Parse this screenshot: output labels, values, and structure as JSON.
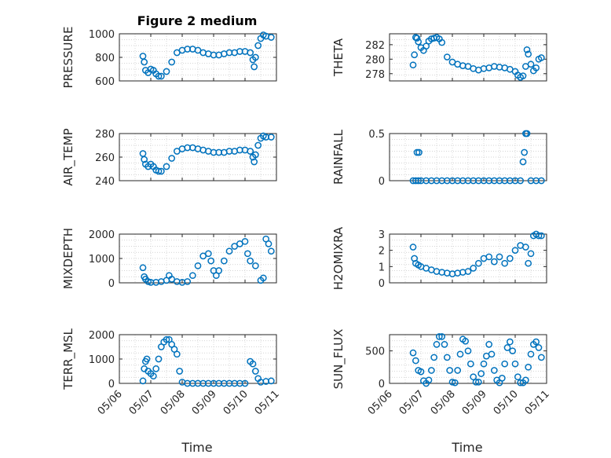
{
  "figure": {
    "title": "Figure 2 medium",
    "xlabel": "Time",
    "marker_color": "#0072BD"
  },
  "chart_data": [
    {
      "type": "scatter",
      "name": "pressure",
      "ylabel": "PRESSURE",
      "ylim": [
        600,
        1000
      ],
      "yticks": [
        600,
        800,
        1000
      ],
      "xlim": [
        "05/06",
        "05/11"
      ],
      "x": [
        "2023-05-06T18:00",
        "2023-05-06T19:00",
        "2023-05-06T20:00",
        "2023-05-06T22:00",
        "2023-05-07T00:00",
        "2023-05-07T02:00",
        "2023-05-07T04:00",
        "2023-05-07T06:00",
        "2023-05-07T08:00",
        "2023-05-07T12:00",
        "2023-05-07T16:00",
        "2023-05-07T20:00",
        "2023-05-08T00:00",
        "2023-05-08T04:00",
        "2023-05-08T08:00",
        "2023-05-08T12:00",
        "2023-05-08T16:00",
        "2023-05-08T20:00",
        "2023-05-09T00:00",
        "2023-05-09T04:00",
        "2023-05-09T08:00",
        "2023-05-09T12:00",
        "2023-05-09T16:00",
        "2023-05-09T20:00",
        "2023-05-10T00:00",
        "2023-05-10T04:00",
        "2023-05-10T06:00",
        "2023-05-10T07:00",
        "2023-05-10T08:00",
        "2023-05-10T10:00",
        "2023-05-10T12:00",
        "2023-05-10T14:00",
        "2023-05-10T16:00",
        "2023-05-10T20:00"
      ],
      "y": [
        810,
        760,
        690,
        670,
        700,
        690,
        660,
        640,
        640,
        680,
        760,
        840,
        860,
        870,
        870,
        860,
        840,
        830,
        820,
        820,
        830,
        840,
        840,
        850,
        850,
        840,
        780,
        720,
        800,
        900,
        960,
        990,
        980,
        970
      ]
    },
    {
      "type": "scatter",
      "name": "theta",
      "ylabel": "THETA",
      "ylim": [
        277,
        283.5
      ],
      "yticks": [
        278,
        280,
        282
      ],
      "xlim": [
        "05/06",
        "05/11"
      ],
      "x": [
        "2023-05-06T18:00",
        "2023-05-06T19:00",
        "2023-05-06T20:00",
        "2023-05-06T21:00",
        "2023-05-06T22:00",
        "2023-05-07T00:00",
        "2023-05-07T02:00",
        "2023-05-07T04:00",
        "2023-05-07T06:00",
        "2023-05-07T08:00",
        "2023-05-07T10:00",
        "2023-05-07T12:00",
        "2023-05-07T14:00",
        "2023-05-07T16:00",
        "2023-05-07T20:00",
        "2023-05-08T00:00",
        "2023-05-08T04:00",
        "2023-05-08T08:00",
        "2023-05-08T12:00",
        "2023-05-08T16:00",
        "2023-05-08T20:00",
        "2023-05-09T00:00",
        "2023-05-09T04:00",
        "2023-05-09T08:00",
        "2023-05-09T12:00",
        "2023-05-09T16:00",
        "2023-05-09T20:00",
        "2023-05-10T00:00",
        "2023-05-10T02:00",
        "2023-05-10T04:00",
        "2023-05-10T06:00",
        "2023-05-10T08:00",
        "2023-05-10T09:00",
        "2023-05-10T10:00",
        "2023-05-10T12:00",
        "2023-05-10T14:00",
        "2023-05-10T16:00",
        "2023-05-10T18:00",
        "2023-05-10T20:00"
      ],
      "y": [
        279.2,
        280.6,
        283.0,
        282.9,
        282.4,
        281.6,
        281.2,
        281.8,
        282.5,
        282.8,
        282.9,
        283.0,
        282.8,
        282.3,
        280.3,
        279.6,
        279.3,
        279.1,
        279.0,
        278.7,
        278.5,
        278.7,
        278.8,
        279.0,
        278.9,
        278.8,
        278.6,
        278.3,
        277.8,
        277.5,
        277.7,
        279.0,
        281.3,
        280.7,
        279.3,
        278.4,
        278.8,
        280.0,
        280.2
      ]
    },
    {
      "type": "scatter",
      "name": "air_temp",
      "ylabel": "AIR_TEMP",
      "ylim": [
        240,
        280
      ],
      "yticks": [
        240,
        260,
        280
      ],
      "xlim": [
        "05/06",
        "05/11"
      ],
      "x": [
        "2023-05-06T18:00",
        "2023-05-06T19:00",
        "2023-05-06T20:00",
        "2023-05-06T22:00",
        "2023-05-07T00:00",
        "2023-05-07T02:00",
        "2023-05-07T04:00",
        "2023-05-07T06:00",
        "2023-05-07T08:00",
        "2023-05-07T12:00",
        "2023-05-07T16:00",
        "2023-05-07T20:00",
        "2023-05-08T00:00",
        "2023-05-08T04:00",
        "2023-05-08T08:00",
        "2023-05-08T12:00",
        "2023-05-08T16:00",
        "2023-05-08T20:00",
        "2023-05-09T00:00",
        "2023-05-09T04:00",
        "2023-05-09T08:00",
        "2023-05-09T12:00",
        "2023-05-09T16:00",
        "2023-05-09T20:00",
        "2023-05-10T00:00",
        "2023-05-10T04:00",
        "2023-05-10T06:00",
        "2023-05-10T07:00",
        "2023-05-10T08:00",
        "2023-05-10T10:00",
        "2023-05-10T12:00",
        "2023-05-10T14:00",
        "2023-05-10T16:00",
        "2023-05-10T20:00"
      ],
      "y": [
        263,
        258,
        254,
        252,
        254,
        252,
        249,
        248,
        248,
        252,
        259,
        265,
        267,
        268,
        268,
        267,
        266,
        265,
        264,
        264,
        264,
        265,
        265,
        266,
        266,
        265,
        260,
        256,
        262,
        270,
        276,
        278,
        277,
        277
      ]
    },
    {
      "type": "scatter",
      "name": "rainfall",
      "ylabel": "RAINFALL",
      "ylim": [
        0,
        0.5
      ],
      "yticks": [
        0,
        0.5
      ],
      "xlim": [
        "05/06",
        "05/11"
      ],
      "x": [
        "2023-05-06T18:00",
        "2023-05-06T20:00",
        "2023-05-06T22:00",
        "2023-05-07T00:00",
        "2023-05-07T04:00",
        "2023-05-07T08:00",
        "2023-05-07T12:00",
        "2023-05-07T16:00",
        "2023-05-07T20:00",
        "2023-05-08T00:00",
        "2023-05-08T04:00",
        "2023-05-08T08:00",
        "2023-05-08T12:00",
        "2023-05-08T16:00",
        "2023-05-08T20:00",
        "2023-05-09T00:00",
        "2023-05-09T04:00",
        "2023-05-09T08:00",
        "2023-05-09T12:00",
        "2023-05-09T16:00",
        "2023-05-09T20:00",
        "2023-05-10T00:00",
        "2023-05-10T04:00",
        "2023-05-10T06:00",
        "2023-05-10T07:00",
        "2023-05-10T08:00",
        "2023-05-10T09:00",
        "2023-05-10T12:00",
        "2023-05-10T16:00",
        "2023-05-10T20:00",
        "2023-05-06T21:00",
        "2023-05-06T22:30"
      ],
      "y": [
        0,
        0,
        0,
        0,
        0,
        0,
        0,
        0,
        0,
        0,
        0,
        0,
        0,
        0,
        0,
        0,
        0,
        0,
        0,
        0,
        0,
        0,
        0,
        0.2,
        0.3,
        0.5,
        0.5,
        0,
        0,
        0,
        0.3,
        0.3
      ]
    },
    {
      "type": "scatter",
      "name": "mixdepth",
      "ylabel": "MIXDEPTH",
      "ylim": [
        0,
        2000
      ],
      "yticks": [
        0,
        1000,
        2000
      ],
      "xlim": [
        "05/06",
        "05/11"
      ],
      "x": [
        "2023-05-06T18:00",
        "2023-05-06T19:00",
        "2023-05-06T20:00",
        "2023-05-06T22:00",
        "2023-05-07T00:00",
        "2023-05-07T04:00",
        "2023-05-07T08:00",
        "2023-05-07T12:00",
        "2023-05-07T14:00",
        "2023-05-07T16:00",
        "2023-05-07T20:00",
        "2023-05-08T00:00",
        "2023-05-08T04:00",
        "2023-05-08T08:00",
        "2023-05-08T12:00",
        "2023-05-08T16:00",
        "2023-05-08T20:00",
        "2023-05-08T22:00",
        "2023-05-09T00:00",
        "2023-05-09T02:00",
        "2023-05-09T04:00",
        "2023-05-09T08:00",
        "2023-05-09T12:00",
        "2023-05-09T16:00",
        "2023-05-09T20:00",
        "2023-05-10T00:00",
        "2023-05-10T02:00",
        "2023-05-10T04:00",
        "2023-05-10T08:00",
        "2023-05-10T12:00",
        "2023-05-10T14:00",
        "2023-05-10T16:00",
        "2023-05-10T18:00",
        "2023-05-10T20:00"
      ],
      "y": [
        620,
        250,
        150,
        50,
        20,
        20,
        50,
        100,
        300,
        150,
        50,
        20,
        50,
        300,
        700,
        1100,
        1200,
        900,
        500,
        300,
        500,
        900,
        1300,
        1500,
        1600,
        1700,
        1200,
        900,
        700,
        100,
        200,
        1800,
        1600,
        1300
      ]
    },
    {
      "type": "scatter",
      "name": "h2o_mixing_ratio",
      "ylabel": "H2OMIXRA",
      "ylim": [
        0,
        3
      ],
      "yticks": [
        0,
        1,
        2,
        3
      ],
      "xlim": [
        "05/06",
        "05/11"
      ],
      "x": [
        "2023-05-06T18:00",
        "2023-05-06T19:00",
        "2023-05-06T20:00",
        "2023-05-06T22:00",
        "2023-05-07T00:00",
        "2023-05-07T04:00",
        "2023-05-07T08:00",
        "2023-05-07T12:00",
        "2023-05-07T16:00",
        "2023-05-07T20:00",
        "2023-05-08T00:00",
        "2023-05-08T04:00",
        "2023-05-08T08:00",
        "2023-05-08T12:00",
        "2023-05-08T16:00",
        "2023-05-08T20:00",
        "2023-05-09T00:00",
        "2023-05-09T04:00",
        "2023-05-09T08:00",
        "2023-05-09T12:00",
        "2023-05-09T16:00",
        "2023-05-09T20:00",
        "2023-05-10T00:00",
        "2023-05-10T04:00",
        "2023-05-10T08:00",
        "2023-05-10T10:00",
        "2023-05-10T12:00",
        "2023-05-10T14:00",
        "2023-05-10T16:00",
        "2023-05-10T18:00",
        "2023-05-10T20:00"
      ],
      "y": [
        2.2,
        1.5,
        1.2,
        1.1,
        1.0,
        0.9,
        0.8,
        0.7,
        0.65,
        0.6,
        0.55,
        0.6,
        0.65,
        0.7,
        0.9,
        1.2,
        1.5,
        1.6,
        1.3,
        1.6,
        1.2,
        1.5,
        2.0,
        2.3,
        2.2,
        1.2,
        1.8,
        2.9,
        3.0,
        2.9,
        2.9
      ]
    },
    {
      "type": "scatter",
      "name": "terr_msl",
      "ylabel": "TERR_MSL",
      "ylim": [
        0,
        2000
      ],
      "yticks": [
        0,
        1000,
        2000
      ],
      "xlim": [
        "05/06",
        "05/11"
      ],
      "x": [
        "2023-05-06T18:00",
        "2023-05-06T19:00",
        "2023-05-06T20:00",
        "2023-05-06T21:00",
        "2023-05-06T22:00",
        "2023-05-07T00:00",
        "2023-05-07T02:00",
        "2023-05-07T04:00",
        "2023-05-07T06:00",
        "2023-05-07T08:00",
        "2023-05-07T10:00",
        "2023-05-07T12:00",
        "2023-05-07T14:00",
        "2023-05-07T16:00",
        "2023-05-07T18:00",
        "2023-05-07T20:00",
        "2023-05-07T22:00",
        "2023-05-08T00:00",
        "2023-05-08T04:00",
        "2023-05-08T08:00",
        "2023-05-08T12:00",
        "2023-05-08T16:00",
        "2023-05-08T20:00",
        "2023-05-09T00:00",
        "2023-05-09T04:00",
        "2023-05-09T08:00",
        "2023-05-09T12:00",
        "2023-05-09T16:00",
        "2023-05-09T20:00",
        "2023-05-10T00:00",
        "2023-05-10T04:00",
        "2023-05-10T06:00",
        "2023-05-10T08:00",
        "2023-05-10T10:00",
        "2023-05-10T12:00",
        "2023-05-10T16:00",
        "2023-05-10T20:00"
      ],
      "y": [
        100,
        600,
        900,
        1000,
        500,
        400,
        300,
        600,
        1000,
        1500,
        1700,
        1800,
        1800,
        1600,
        1400,
        1200,
        500,
        50,
        0,
        0,
        0,
        0,
        0,
        0,
        0,
        0,
        0,
        0,
        0,
        0,
        900,
        800,
        500,
        200,
        50,
        80,
        100
      ]
    },
    {
      "type": "scatter",
      "name": "sun_flux",
      "ylabel": "SUN_FLUX",
      "ylim": [
        0,
        750
      ],
      "yticks": [
        0,
        500
      ],
      "xlim": [
        "05/06",
        "05/11"
      ],
      "x": [
        "2023-05-06T18:00",
        "2023-05-06T20:00",
        "2023-05-06T22:00",
        "2023-05-07T00:00",
        "2023-05-07T02:00",
        "2023-05-07T04:00",
        "2023-05-07T06:00",
        "2023-05-07T08:00",
        "2023-05-07T10:00",
        "2023-05-07T12:00",
        "2023-05-07T14:00",
        "2023-05-07T16:00",
        "2023-05-07T18:00",
        "2023-05-07T20:00",
        "2023-05-07T22:00",
        "2023-05-08T00:00",
        "2023-05-08T02:00",
        "2023-05-08T04:00",
        "2023-05-08T06:00",
        "2023-05-08T08:00",
        "2023-05-08T10:00",
        "2023-05-08T12:00",
        "2023-05-08T14:00",
        "2023-05-08T16:00",
        "2023-05-08T18:00",
        "2023-05-08T20:00",
        "2023-05-08T22:00",
        "2023-05-09T00:00",
        "2023-05-09T02:00",
        "2023-05-09T04:00",
        "2023-05-09T06:00",
        "2023-05-09T08:00",
        "2023-05-09T10:00",
        "2023-05-09T12:00",
        "2023-05-09T14:00",
        "2023-05-09T16:00",
        "2023-05-09T18:00",
        "2023-05-09T20:00",
        "2023-05-09T22:00",
        "2023-05-10T00:00",
        "2023-05-10T02:00",
        "2023-05-10T04:00",
        "2023-05-10T06:00",
        "2023-05-10T08:00",
        "2023-05-10T10:00",
        "2023-05-10T12:00",
        "2023-05-10T14:00",
        "2023-05-10T16:00",
        "2023-05-10T18:00",
        "2023-05-10T20:00"
      ],
      "y": [
        470,
        350,
        200,
        180,
        40,
        0,
        50,
        200,
        400,
        600,
        720,
        720,
        600,
        400,
        200,
        20,
        10,
        200,
        450,
        680,
        650,
        500,
        300,
        100,
        20,
        20,
        150,
        300,
        420,
        600,
        450,
        200,
        50,
        10,
        80,
        300,
        550,
        640,
        500,
        300,
        100,
        10,
        10,
        50,
        250,
        450,
        600,
        640,
        550,
        400
      ]
    }
  ]
}
